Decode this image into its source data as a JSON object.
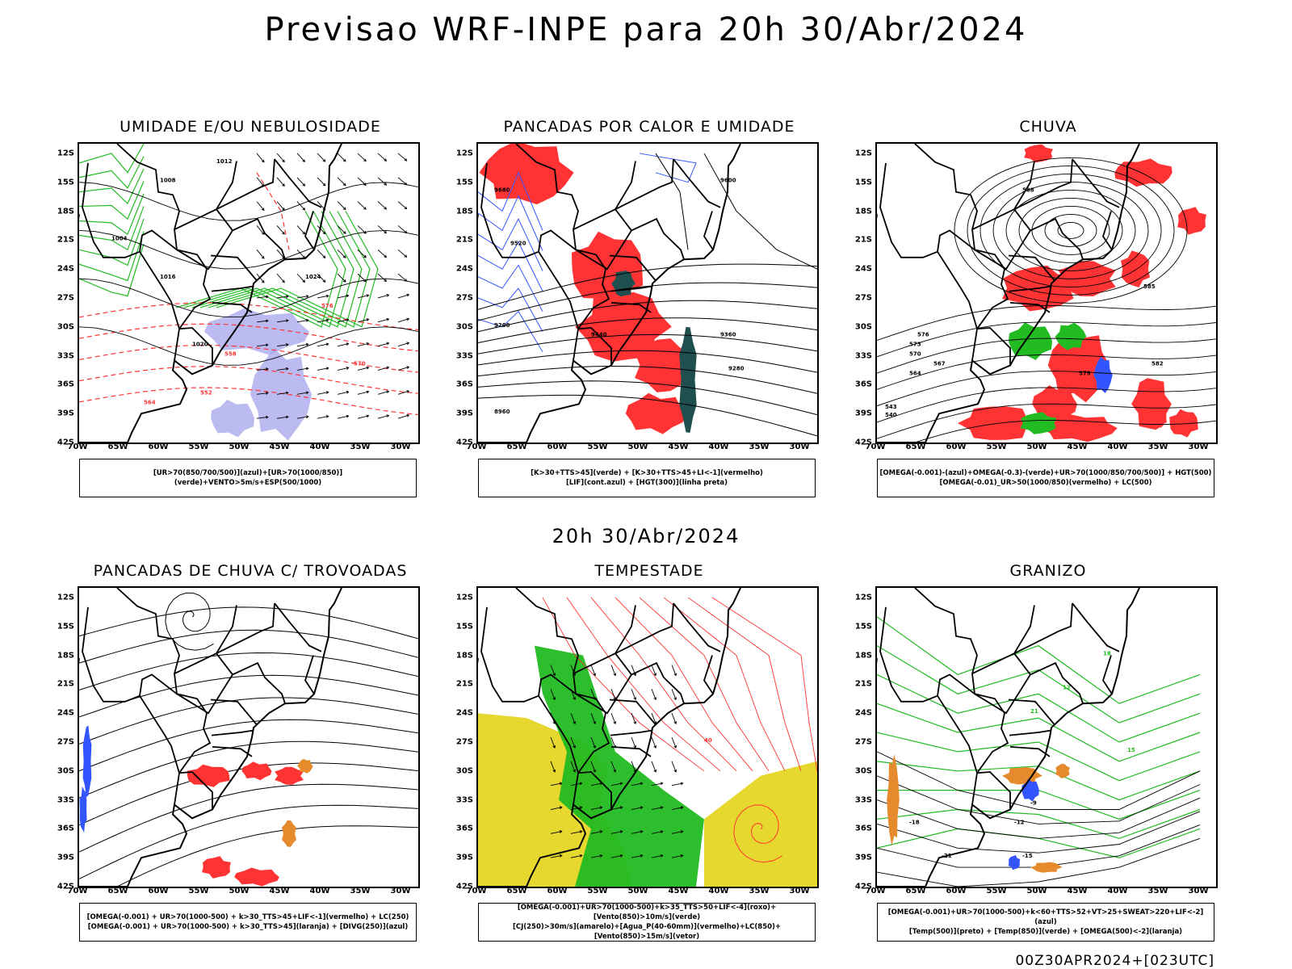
{
  "header": {
    "title": "Previsao WRF-INPE  para 20h 30/Abr/2024",
    "mid_title": "20h 30/Abr/2024",
    "footer": "00Z30APR2024+[023UTC]"
  },
  "axes": {
    "lat_ticks": [
      "12S",
      "15S",
      "18S",
      "21S",
      "24S",
      "27S",
      "30S",
      "33S",
      "36S",
      "39S",
      "42S"
    ],
    "lon_ticks": [
      "70W",
      "65W",
      "60W",
      "55W",
      "50W",
      "45W",
      "40W",
      "35W",
      "30W"
    ]
  },
  "panels": [
    {
      "title": "UMIDADE E/OU NEBULOSIDADE",
      "legend": [
        "[UR>70(850/700/500)](azul)+[UR>70(1000/850)](verde)+VENTO>5m/s+ESP(500/1000)"
      ],
      "labels": [
        "1012",
        "1008",
        "1004",
        "1016",
        "1020",
        "1024",
        "576",
        "570",
        "564",
        "558",
        "552"
      ]
    },
    {
      "title": "PANCADAS POR CALOR E UMIDADE",
      "legend": [
        "[K>30+TTS>45](verde) + [K>30+TTS>45+LI<-1](vermelho)",
        "[LIF](cont.azul) + [HGT(300)](linha preta)"
      ],
      "labels": [
        "9680",
        "9600",
        "9520",
        "9440",
        "9360",
        "9280",
        "9200",
        "8960"
      ]
    },
    {
      "title": "CHUVA",
      "legend": [
        "[OMEGA(-0.001)-(azul)+OMEGA(-0.3)-(verde)+UR>70(1000/850/700/500)] + HGT(500)",
        "[OMEGA(-0.01)_UR>50(1000/850)(vermelho) + LC(500)"
      ],
      "labels": [
        "588",
        "585",
        "582",
        "579",
        "576",
        "573",
        "570",
        "567",
        "564",
        "543",
        "540"
      ]
    },
    {
      "title": "PANCADAS DE CHUVA C/ TROVOADAS",
      "legend": [
        "[OMEGA(-0.001) + UR>70(1000-500) + k>30_TTS>45+LIF<-1](vermelho) + LC(250)",
        "[OMEGA(-0.001) + UR>70(1000-500) + k>30_TTS>45](laranja) + [DIVG(250)](azul)"
      ],
      "labels": []
    },
    {
      "title": "TEMPESTADE",
      "legend": [
        "[OMEGA(-0.001)+UR>70(1000-500)+k>35_TTS>50+LIF<-4](roxo)+[Vento(850)>10m/s](verde)",
        "[CJ(250)>30m/s](amarelo)+[Agua_P(40-60mm)](vermelho)+LC(850)+[Vento(850)>15m/s](vetor)"
      ],
      "labels": [
        "40"
      ]
    },
    {
      "title": "GRANIZO",
      "legend": [
        "[OMEGA(-0.001)+UR>70(1000-500)+k<60+TTS>52+VT>25+SWEAT>220+LIF<-2](azul)",
        "[Temp(500)](preto) + [Temp(850)](verde) + [OMEGA(500)<-2](laranja)"
      ],
      "labels": [
        "-9",
        "-12",
        "-15",
        "-18",
        "-21",
        "12",
        "15",
        "18",
        "21"
      ]
    }
  ],
  "colors": {
    "red": "#ff3333",
    "green": "#22bb22",
    "blue": "#3355ff",
    "lavender": "#aaaaee",
    "yellow": "#e6d82e",
    "darkteal": "#1f4f4f",
    "orange": "#e68a2e"
  }
}
